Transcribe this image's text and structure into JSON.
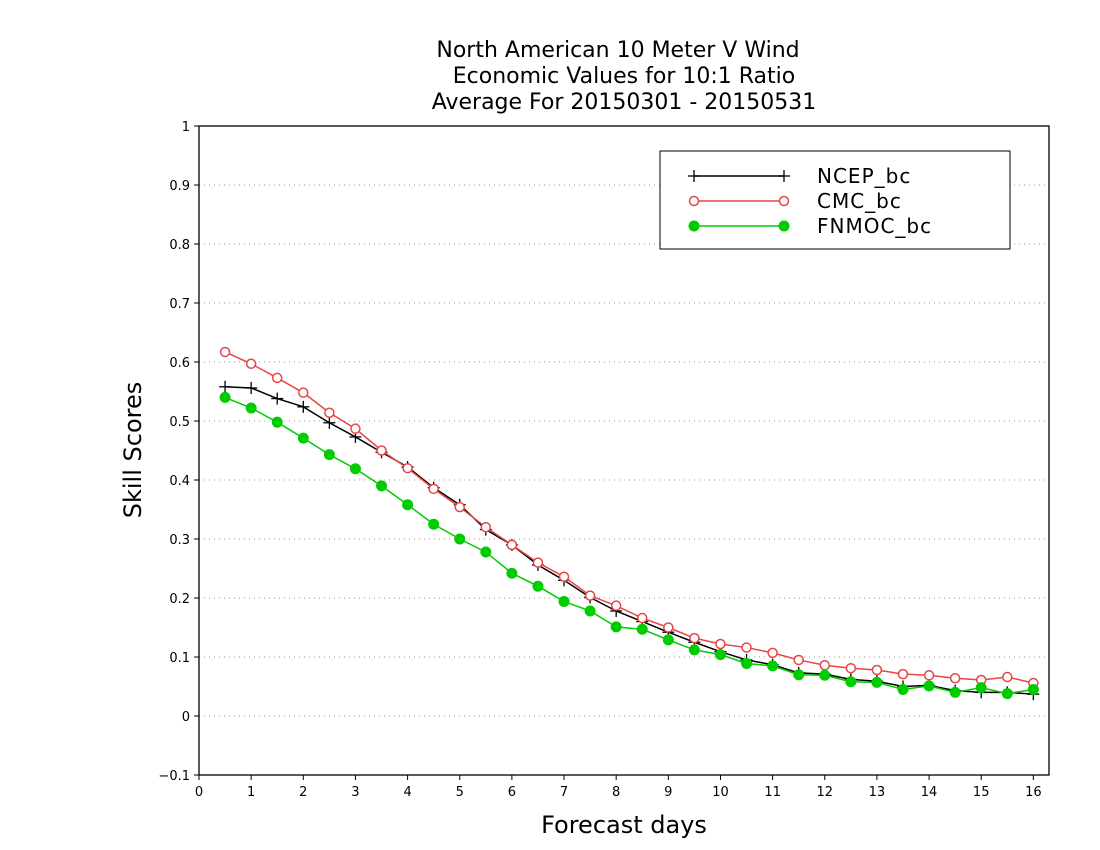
{
  "chart_data": {
    "type": "line",
    "title": [
      "North American 10 Meter V Wind",
      "Economic Values for 10:1 Ratio",
      "Average For 20150301 - 20150531"
    ],
    "xlabel": "Forecast days",
    "ylabel": "Skill Scores",
    "xlim": [
      0,
      16.3
    ],
    "ylim": [
      -0.1,
      1
    ],
    "xticks": [
      "0",
      "1",
      "2",
      "3",
      "4",
      "5",
      "6",
      "7",
      "8",
      "9",
      "10",
      "11",
      "12",
      "13",
      "14",
      "15",
      "16"
    ],
    "yticks": [
      "-0.1",
      "0",
      "0.1",
      "0.2",
      "0.3",
      "0.4",
      "0.5",
      "0.6",
      "0.7",
      "0.8",
      "0.9",
      "1"
    ],
    "grid": true,
    "legend_position": "top-right",
    "x": [
      0.5,
      1,
      1.5,
      2,
      2.5,
      3,
      3.5,
      4,
      4.5,
      5,
      5.5,
      6,
      6.5,
      7,
      7.5,
      8,
      8.5,
      9,
      9.5,
      10,
      10.5,
      11,
      11.5,
      12,
      12.5,
      13,
      13.5,
      14,
      14.5,
      15,
      15.5,
      16
    ],
    "series": [
      {
        "name": "NCEP_bc",
        "color": "#000000",
        "marker": "plus",
        "values": [
          0.558,
          0.556,
          0.538,
          0.524,
          0.497,
          0.473,
          0.447,
          0.422,
          0.387,
          0.358,
          0.316,
          0.29,
          0.256,
          0.23,
          0.201,
          0.178,
          0.16,
          0.142,
          0.125,
          0.109,
          0.095,
          0.087,
          0.073,
          0.071,
          0.062,
          0.059,
          0.05,
          0.052,
          0.043,
          0.04,
          0.04,
          0.037
        ]
      },
      {
        "name": "CMC_bc",
        "color": "#e84545",
        "marker": "open-circle",
        "values": [
          0.617,
          0.597,
          0.573,
          0.548,
          0.514,
          0.487,
          0.45,
          0.42,
          0.385,
          0.354,
          0.32,
          0.29,
          0.26,
          0.236,
          0.204,
          0.187,
          0.166,
          0.15,
          0.132,
          0.122,
          0.116,
          0.107,
          0.095,
          0.086,
          0.081,
          0.078,
          0.071,
          0.069,
          0.064,
          0.061,
          0.066,
          0.056
        ]
      },
      {
        "name": "FNMOC_bc",
        "color": "#00cc00",
        "marker": "filled-circle",
        "values": [
          0.54,
          0.522,
          0.498,
          0.471,
          0.443,
          0.419,
          0.39,
          0.358,
          0.325,
          0.3,
          0.278,
          0.242,
          0.22,
          0.194,
          0.178,
          0.151,
          0.147,
          0.129,
          0.112,
          0.104,
          0.089,
          0.085,
          0.07,
          0.069,
          0.058,
          0.057,
          0.045,
          0.051,
          0.04,
          0.048,
          0.038,
          0.045
        ]
      }
    ]
  }
}
